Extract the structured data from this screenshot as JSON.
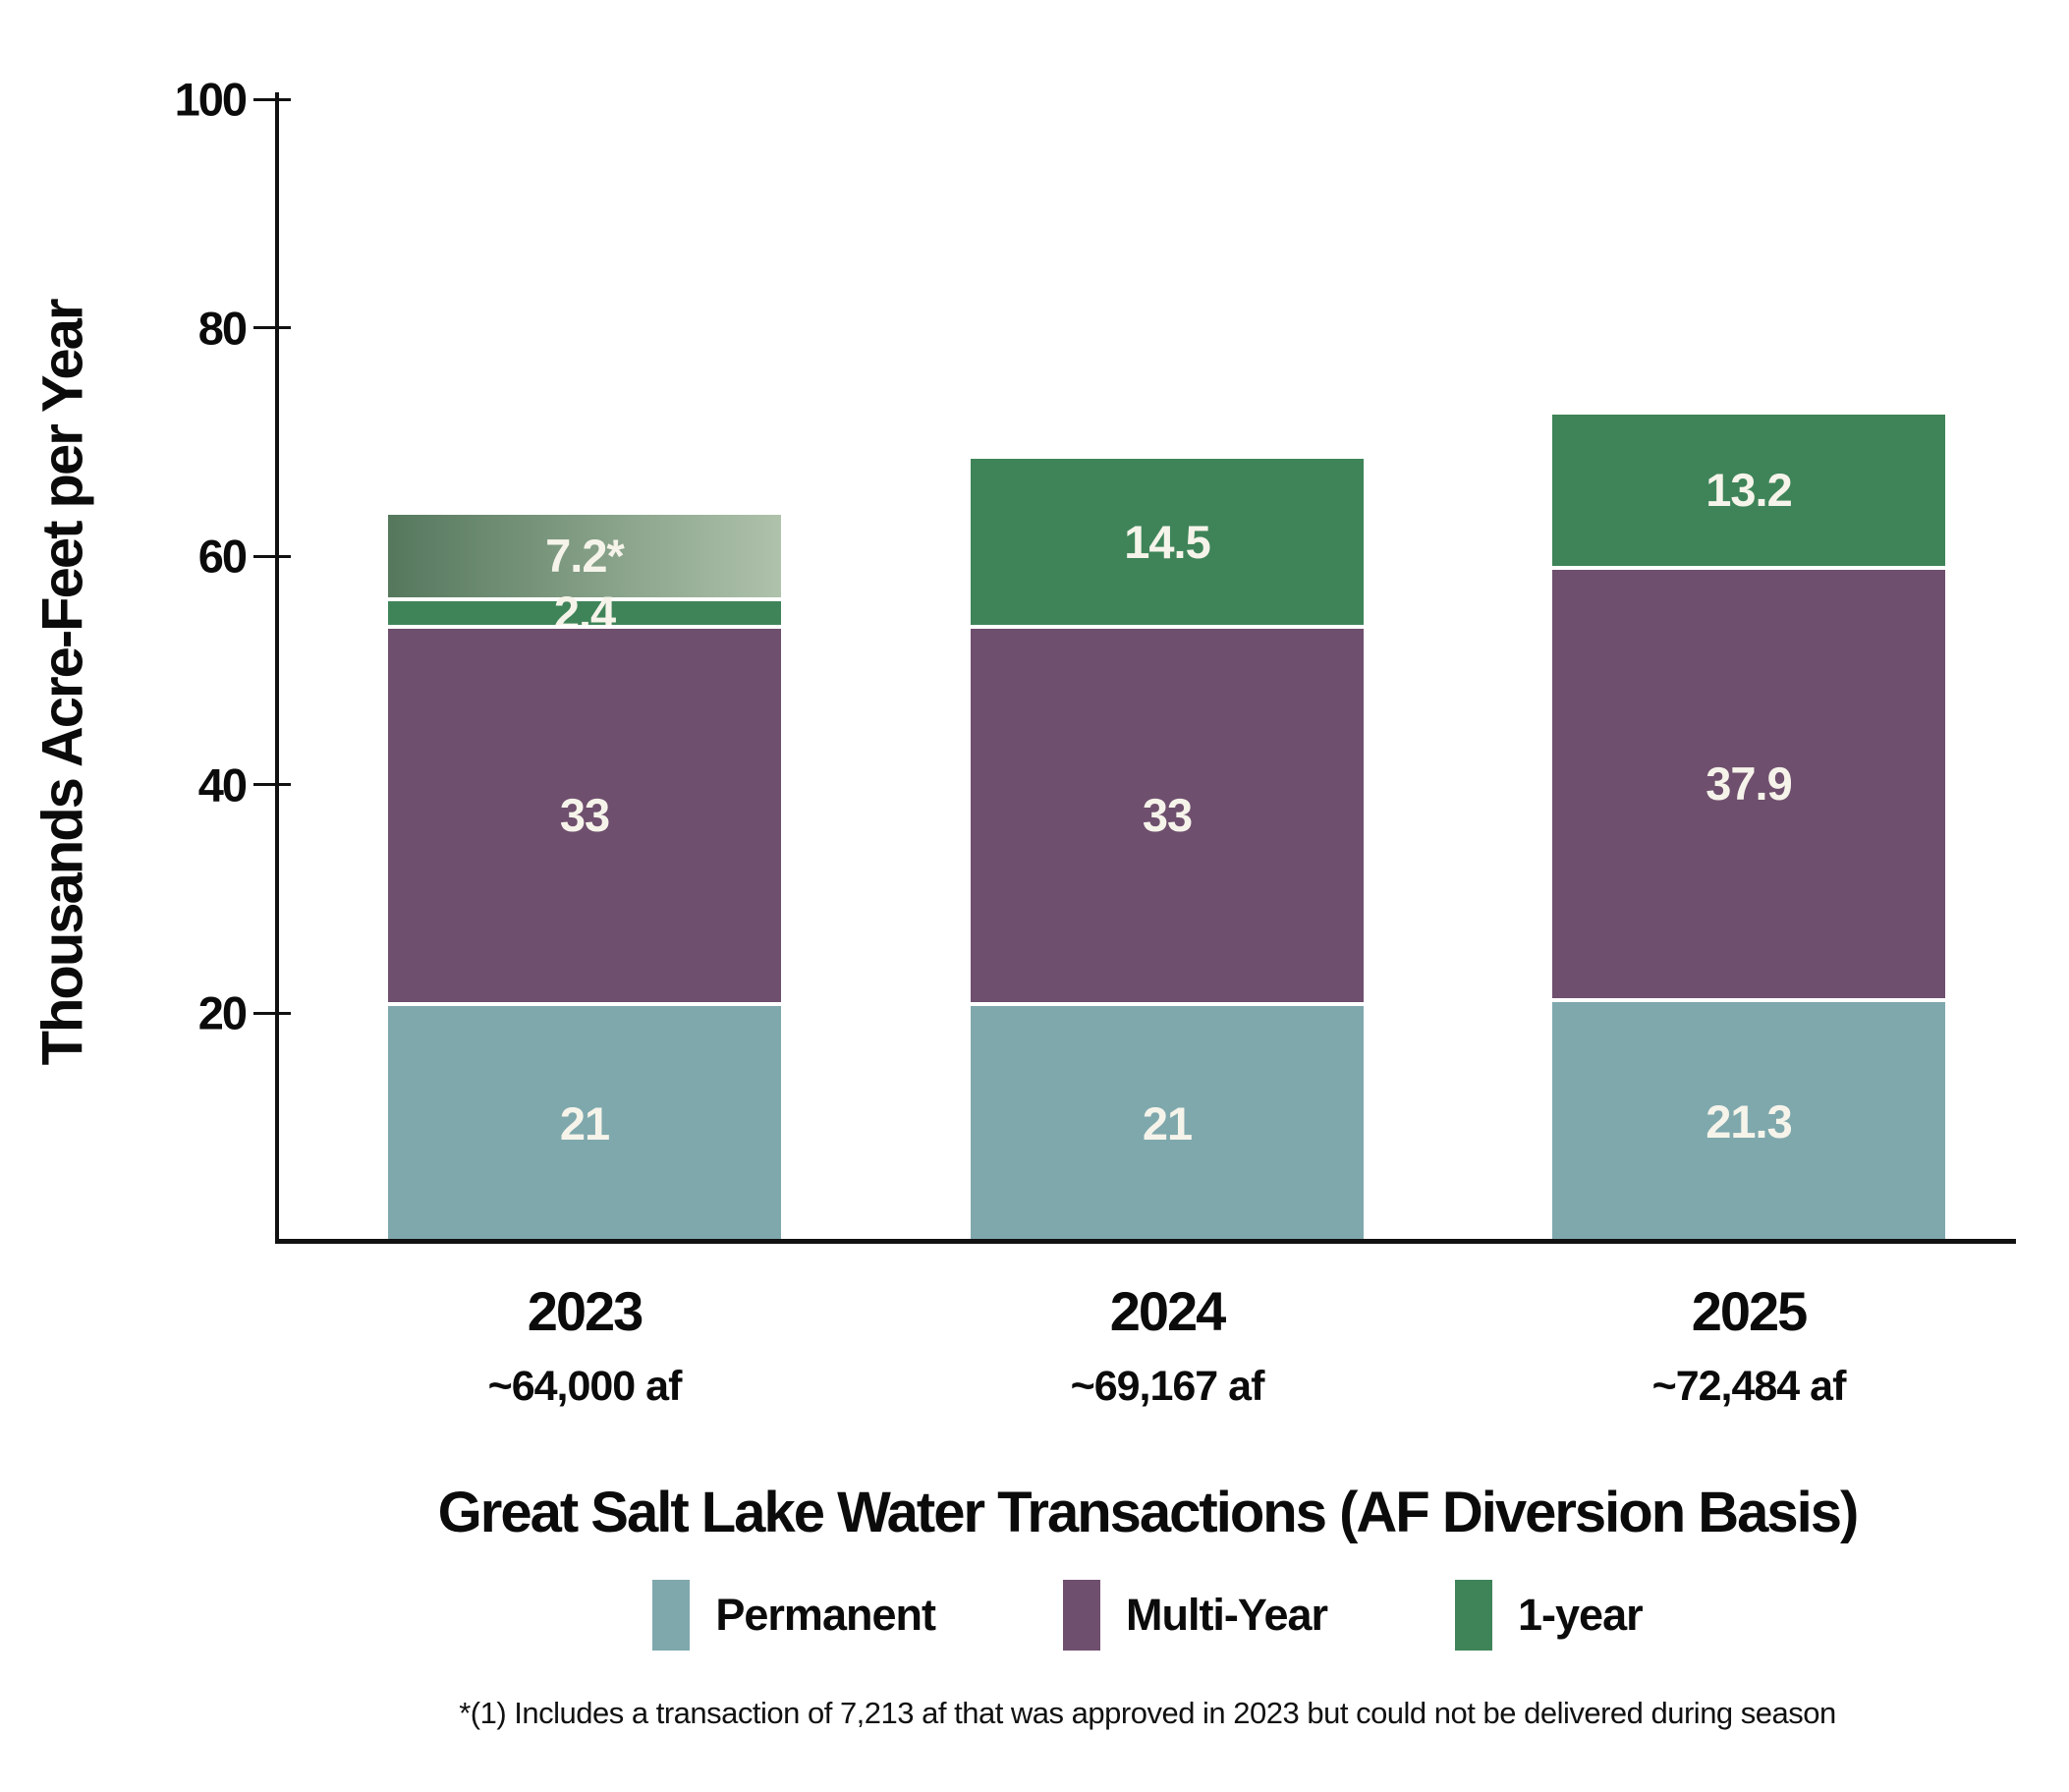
{
  "chart_data": {
    "type": "bar",
    "stacked": true,
    "title": "Great Salt Lake Water Transactions (AF Diversion Basis)",
    "ylabel": "Thousands Acre-Feet per Year",
    "ylim": [
      0,
      100
    ],
    "yticks": [
      20,
      40,
      60,
      80,
      100
    ],
    "grid": false,
    "legend_position": "bottom",
    "categories": [
      "2023",
      "2024",
      "2025"
    ],
    "category_sublabels": [
      "~64,000 af",
      "~69,167 af",
      "~72,484 af"
    ],
    "series_names": [
      "Permanent",
      "Multi-Year",
      "1-year"
    ],
    "bars": [
      {
        "year": "2023",
        "total_label": "~64,000 af",
        "segments": [
          {
            "series": "Permanent",
            "value": 21,
            "label": "21"
          },
          {
            "series": "Multi-Year",
            "value": 33,
            "label": "33"
          },
          {
            "series": "1-year",
            "value": 2.4,
            "label": "2.4"
          },
          {
            "series": "1-year-footnote",
            "value": 7.2,
            "label": "7.2*",
            "gradient": true
          }
        ]
      },
      {
        "year": "2024",
        "total_label": "~69,167 af",
        "segments": [
          {
            "series": "Permanent",
            "value": 21,
            "label": "21"
          },
          {
            "series": "Multi-Year",
            "value": 33,
            "label": "33"
          },
          {
            "series": "1-year",
            "value": 14.5,
            "label": "14.5"
          }
        ]
      },
      {
        "year": "2025",
        "total_label": "~72,484 af",
        "segments": [
          {
            "series": "Permanent",
            "value": 21.3,
            "label": "21.3"
          },
          {
            "series": "Multi-Year",
            "value": 37.9,
            "label": "37.9"
          },
          {
            "series": "1-year",
            "value": 13.2,
            "label": "13.2"
          }
        ]
      }
    ],
    "colors": {
      "Permanent": "#7FA8AD",
      "Multi-Year": "#6F4F6E",
      "1-year": "#3F8459",
      "footnote_gradient": [
        "#55785D",
        "#AFC2AB"
      ],
      "segment_label": "#F6F4EA",
      "axis": "#111111"
    },
    "legend_entries": [
      {
        "name": "Permanent",
        "color": "#7FA8AD"
      },
      {
        "name": "Multi-Year",
        "color": "#6F4F6E"
      },
      {
        "name": "1-year",
        "color": "#3F8459"
      }
    ],
    "footnote": "*(1) Includes a transaction of 7,213 af that was approved in 2023 but could not be delivered during season"
  }
}
